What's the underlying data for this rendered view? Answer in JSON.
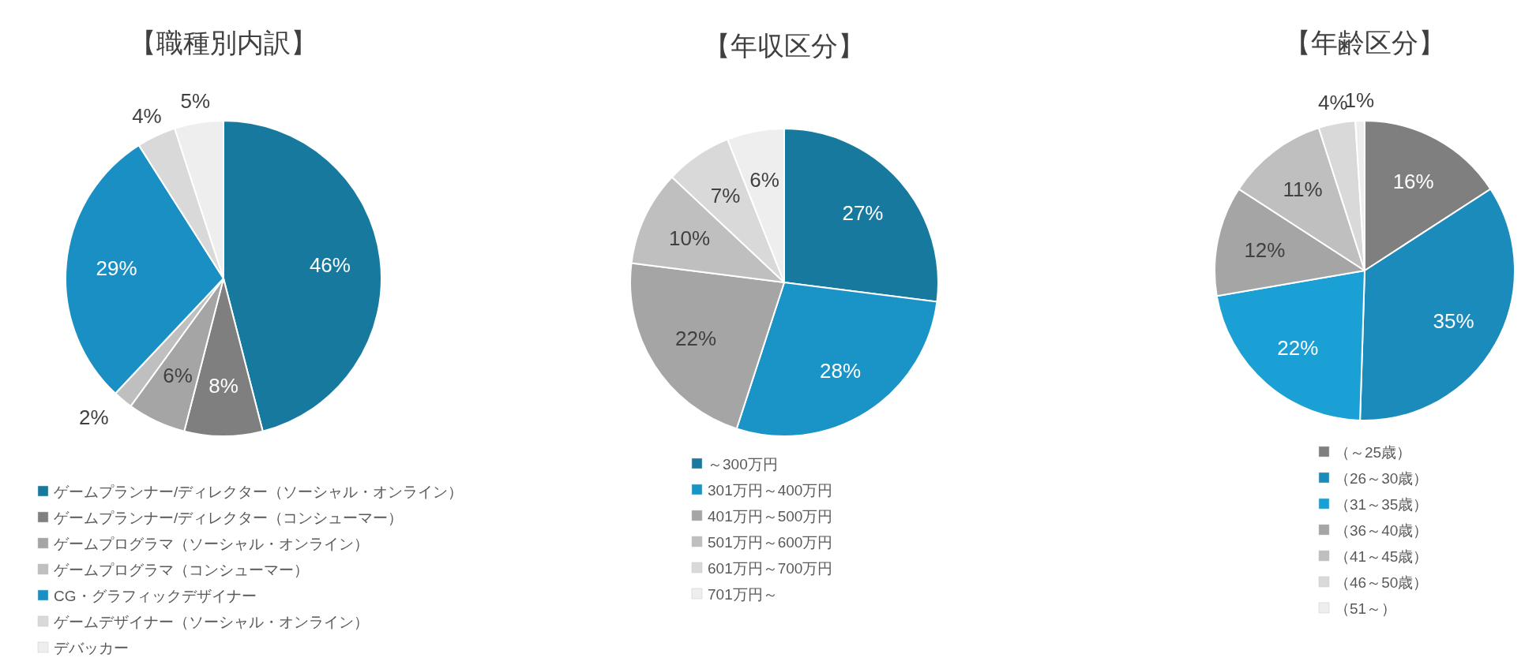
{
  "chart_data": [
    {
      "type": "pie",
      "title": "【職種別内訳】",
      "legend": "bottom",
      "categories": [
        "ゲームプランナー/ディレクター（ソーシャル・オンライン）",
        "ゲームプランナー/ディレクター（コンシューマー）",
        "ゲームプログラマ（ソーシャル・オンライン）",
        "ゲームプログラマ（コンシューマー）",
        "CG・グラフィックデザイナー",
        "ゲームデザイナー（ソーシャル・オンライン）",
        "デバッカー"
      ],
      "values": [
        46,
        8,
        6,
        2,
        29,
        4,
        5
      ],
      "colors": [
        "#18799f",
        "#7f7f7f",
        "#a5a5a5",
        "#bfbfbf",
        "#1a8fc4",
        "#d9d9d9",
        "#eeeeee"
      ],
      "value_labels": [
        "46%",
        "8%",
        "6%",
        "2%",
        "29%",
        "4%",
        "5%"
      ]
    },
    {
      "type": "pie",
      "title": "【年収区分】",
      "legend": "bottom",
      "categories": [
        "～300万円",
        "301万円～400万円",
        "401万円～500万円",
        "501万円～600万円",
        "601万円～700万円",
        "701万円～"
      ],
      "values": [
        27,
        28,
        22,
        10,
        7,
        6
      ],
      "colors": [
        "#18799f",
        "#1a93c6",
        "#a5a5a5",
        "#bfbfbf",
        "#d9d9d9",
        "#eeeeee"
      ],
      "value_labels": [
        "27%",
        "28%",
        "22%",
        "10%",
        "7%",
        "6%"
      ]
    },
    {
      "type": "pie",
      "title": "【年齢区分】",
      "legend": "bottom",
      "categories": [
        "（～25歳）",
        "（26～30歳）",
        "（31～35歳）",
        "（36～40歳）",
        "（41～45歳）",
        "（46～50歳）",
        "（51～）"
      ],
      "values": [
        16,
        35,
        22,
        12,
        11,
        4,
        1
      ],
      "colors": [
        "#7f7f7f",
        "#1a8bbb",
        "#1aa0d5",
        "#a5a5a5",
        "#bfbfbf",
        "#d9d9d9",
        "#eeeeee"
      ],
      "value_labels": [
        "16%",
        "35%",
        "22%",
        "12%",
        "11%",
        "4%",
        "1%"
      ]
    }
  ]
}
